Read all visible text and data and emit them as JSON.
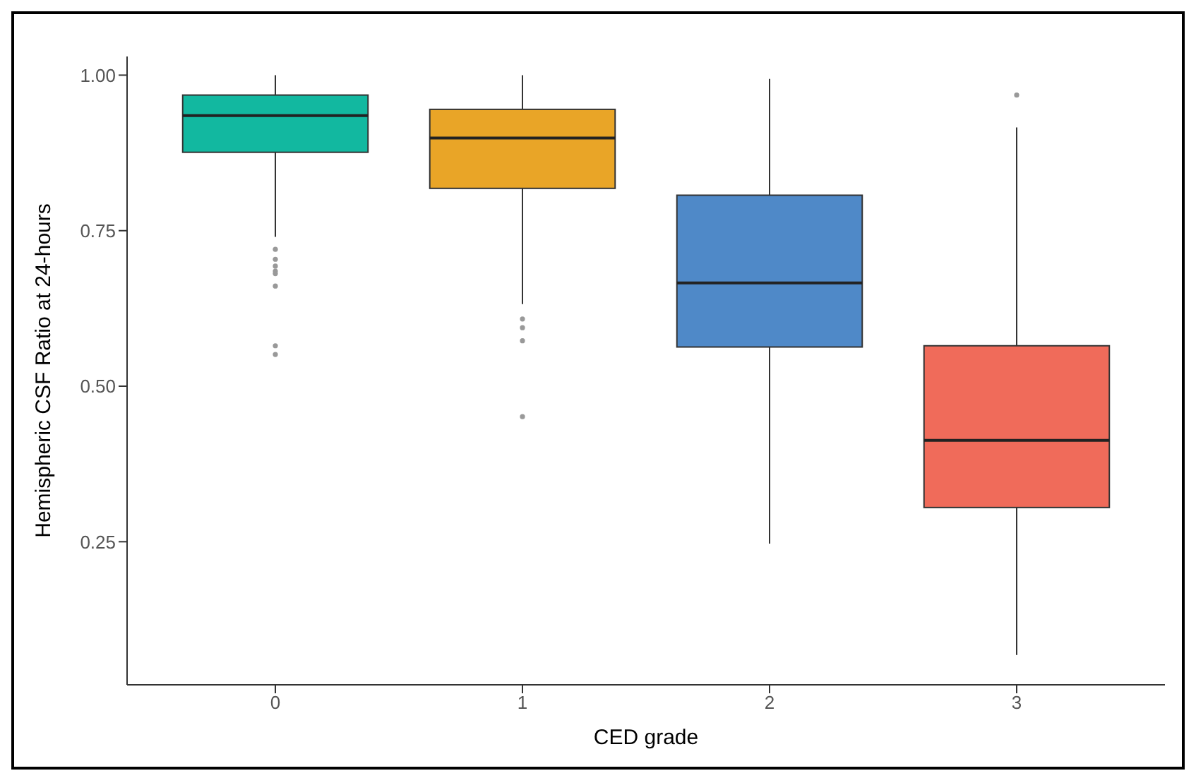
{
  "chart_data": {
    "type": "box",
    "xlabel": "CED grade",
    "ylabel": "Hemispheric CSF Ratio at 24-hours",
    "categories": [
      "0",
      "1",
      "2",
      "3"
    ],
    "colors": [
      "#12b8a0",
      "#e9a527",
      "#4f89c8",
      "#f06b5a"
    ],
    "boxes": [
      {
        "low": 0.74,
        "q1": 0.876,
        "median": 0.935,
        "q3": 0.968,
        "high": 1.0,
        "outliers": [
          0.72,
          0.704,
          0.693,
          0.685,
          0.681,
          0.661,
          0.565,
          0.551
        ]
      },
      {
        "low": 0.632,
        "q1": 0.818,
        "median": 0.899,
        "q3": 0.945,
        "high": 1.0,
        "outliers": [
          0.608,
          0.594,
          0.573,
          0.451
        ]
      },
      {
        "low": 0.247,
        "q1": 0.563,
        "median": 0.666,
        "q3": 0.807,
        "high": 0.994
      },
      {
        "low": 0.068,
        "q1": 0.305,
        "median": 0.413,
        "q3": 0.565,
        "high": 0.916,
        "outliers": [
          0.968
        ]
      }
    ],
    "ylim": [
      0.02,
      1.03
    ],
    "yticks": [
      {
        "value": 0.25,
        "label": "0.25"
      },
      {
        "value": 0.5,
        "label": "0.50"
      },
      {
        "value": 0.75,
        "label": "0.75"
      },
      {
        "value": 1.0,
        "label": "1.00"
      }
    ]
  }
}
